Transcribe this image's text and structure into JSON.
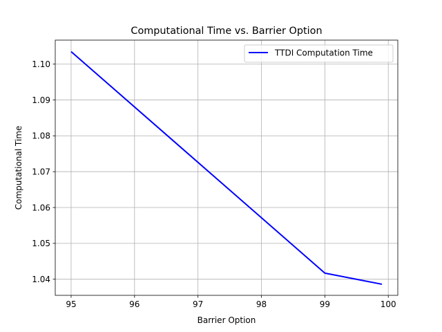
{
  "chart_data": {
    "type": "line",
    "title": "Computational Time vs. Barrier Option",
    "xlabel": "Barrier Option",
    "ylabel": "Computational Time",
    "xlim": [
      94.75,
      100.15
    ],
    "ylim": [
      1.0355,
      1.1067
    ],
    "xticks": [
      95,
      96,
      97,
      98,
      99,
      100
    ],
    "xtick_labels": [
      "95",
      "96",
      "97",
      "98",
      "99",
      "100"
    ],
    "yticks": [
      1.04,
      1.05,
      1.06,
      1.07,
      1.08,
      1.09,
      1.1
    ],
    "ytick_labels": [
      "1.04",
      "1.05",
      "1.06",
      "1.07",
      "1.08",
      "1.09",
      "1.10"
    ],
    "grid": true,
    "legend_position": "top-right",
    "series": [
      {
        "name": "TTDI Computation Time",
        "color": "#0000ff",
        "x": [
          95,
          99,
          99.9
        ],
        "y": [
          1.1035,
          1.0417,
          1.0386
        ]
      }
    ]
  }
}
